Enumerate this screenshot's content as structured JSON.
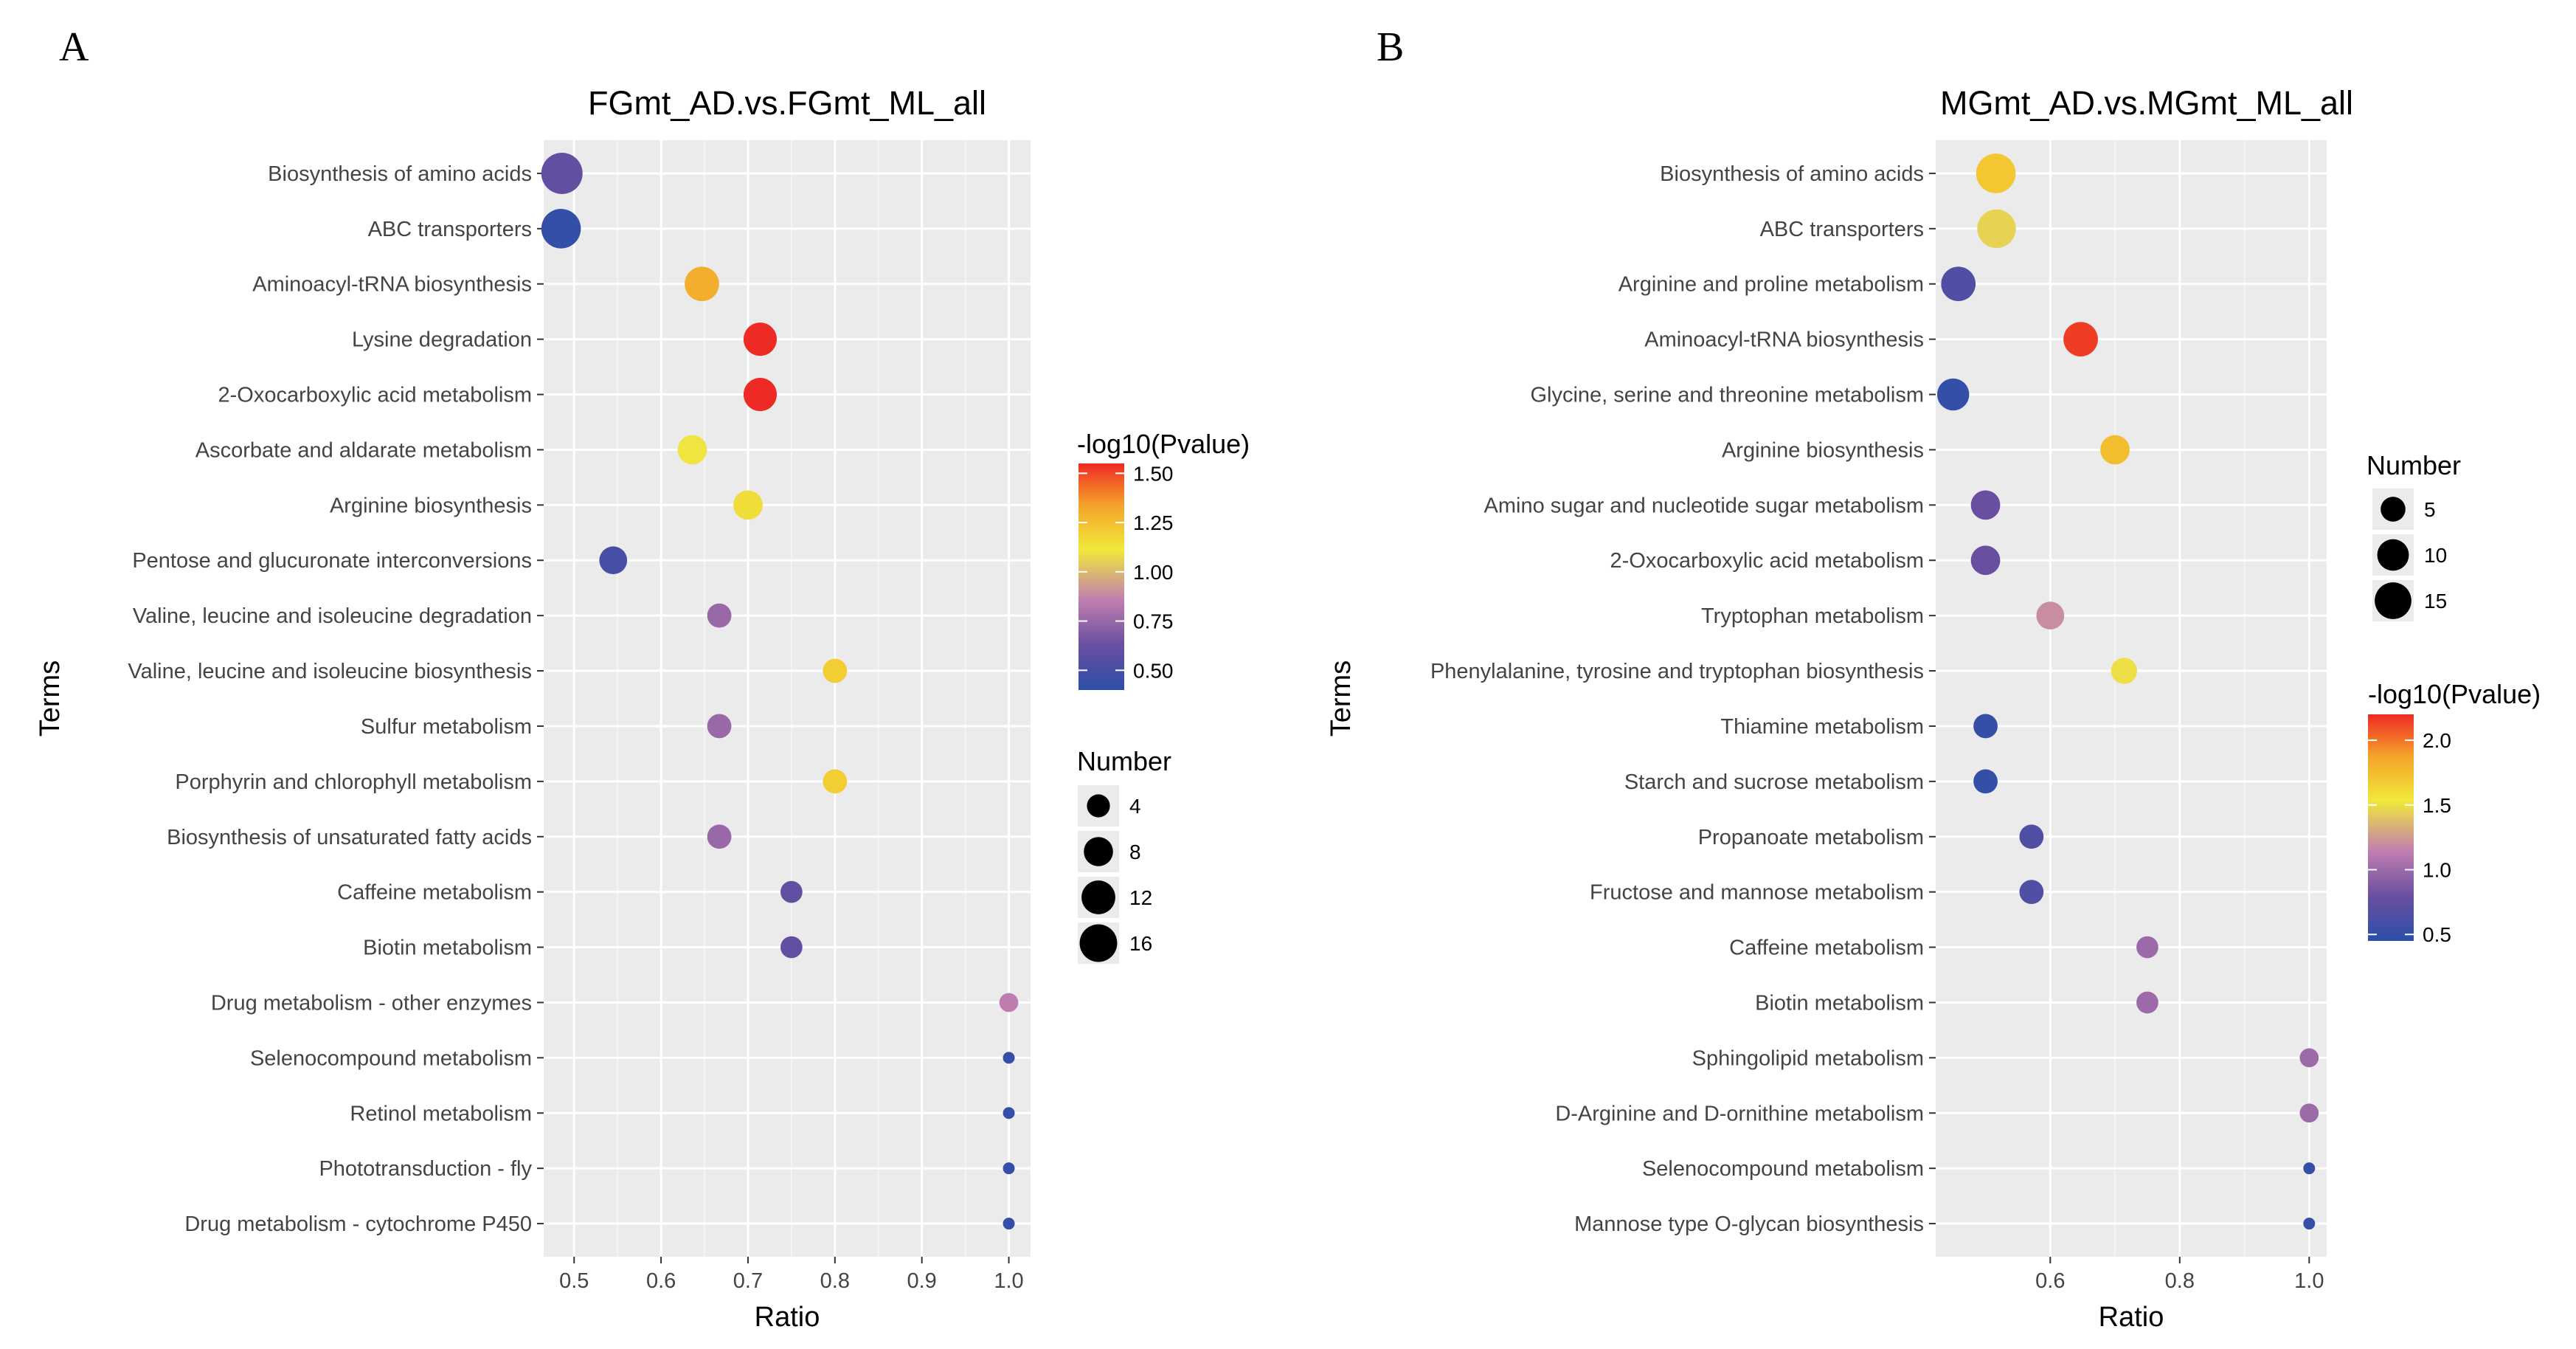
{
  "chart_data": [
    {
      "type": "scatter",
      "panel_label": "A",
      "title": "FGmt_AD.vs.FGmt_ML_all",
      "xlabel": "Ratio",
      "ylabel": "Terms",
      "xlim": [
        0.465,
        1.025
      ],
      "xticks": [
        0.5,
        0.6,
        0.7,
        0.8,
        0.9,
        1.0
      ],
      "xtick_labels": [
        "0.5",
        "0.6",
        "0.7",
        "0.8",
        "0.9",
        "1.0"
      ],
      "color_legend": {
        "title": "-log10(Pvalue)",
        "range": [
          0.4,
          1.55
        ],
        "ticks": [
          1.5,
          1.25,
          1.0,
          0.75,
          0.5
        ],
        "tick_labels": [
          "1.50",
          "1.25",
          "1.00",
          "0.75",
          "0.50"
        ]
      },
      "size_legend": {
        "title": "Number",
        "values": [
          4,
          8,
          12,
          16
        ],
        "labels": [
          "4",
          "8",
          "12",
          "16"
        ]
      },
      "points": [
        {
          "term": "Biosynthesis of amino acids",
          "ratio": 0.486,
          "number": 18,
          "neglog10p": 0.6
        },
        {
          "term": "ABC transporters",
          "ratio": 0.485,
          "number": 16,
          "neglog10p": 0.43
        },
        {
          "term": "Aminoacyl-tRNA biosynthesis",
          "ratio": 0.647,
          "number": 11,
          "neglog10p": 1.3
        },
        {
          "term": "Lysine degradation",
          "ratio": 0.714,
          "number": 10,
          "neglog10p": 1.55
        },
        {
          "term": "2-Oxocarboxylic acid metabolism",
          "ratio": 0.714,
          "number": 10,
          "neglog10p": 1.55
        },
        {
          "term": "Ascorbate and aldarate metabolism",
          "ratio": 0.636,
          "number": 7,
          "neglog10p": 1.1
        },
        {
          "term": "Arginine biosynthesis",
          "ratio": 0.7,
          "number": 7,
          "neglog10p": 1.15
        },
        {
          "term": "Pentose and glucuronate interconversions",
          "ratio": 0.545,
          "number": 6,
          "neglog10p": 0.5
        },
        {
          "term": "Valine, leucine and isoleucine degradation",
          "ratio": 0.667,
          "number": 4,
          "neglog10p": 0.75
        },
        {
          "term": "Valine, leucine and isoleucine biosynthesis",
          "ratio": 0.8,
          "number": 4,
          "neglog10p": 1.2
        },
        {
          "term": "Sulfur metabolism",
          "ratio": 0.667,
          "number": 4,
          "neglog10p": 0.75
        },
        {
          "term": "Porphyrin and chlorophyll metabolism",
          "ratio": 0.8,
          "number": 4,
          "neglog10p": 1.2
        },
        {
          "term": "Biosynthesis of unsaturated fatty acids",
          "ratio": 0.667,
          "number": 4,
          "neglog10p": 0.75
        },
        {
          "term": "Caffeine metabolism",
          "ratio": 0.75,
          "number": 3,
          "neglog10p": 0.6
        },
        {
          "term": "Biotin metabolism",
          "ratio": 0.75,
          "number": 3,
          "neglog10p": 0.6
        },
        {
          "term": "Drug metabolism - other enzymes",
          "ratio": 1.0,
          "number": 2,
          "neglog10p": 0.85
        },
        {
          "term": "Selenocompound metabolism",
          "ratio": 1.0,
          "number": 1,
          "neglog10p": 0.43
        },
        {
          "term": "Retinol metabolism",
          "ratio": 1.0,
          "number": 1,
          "neglog10p": 0.43
        },
        {
          "term": "Phototransduction - fly",
          "ratio": 1.0,
          "number": 1,
          "neglog10p": 0.43
        },
        {
          "term": "Drug metabolism - cytochrome P450",
          "ratio": 1.0,
          "number": 1,
          "neglog10p": 0.43
        }
      ]
    },
    {
      "type": "scatter",
      "panel_label": "B",
      "title": "MGmt_AD.vs.MGmt_ML_all",
      "xlabel": "Ratio",
      "ylabel": "Terms",
      "xlim": [
        0.423,
        1.027
      ],
      "xticks": [
        0.6,
        0.8,
        1.0
      ],
      "xtick_labels": [
        "0.6",
        "0.8",
        "1.0"
      ],
      "color_legend": {
        "title": "-log10(Pvalue)",
        "range": [
          0.45,
          2.2
        ],
        "ticks": [
          2.0,
          1.5,
          1.0,
          0.5
        ],
        "tick_labels": [
          "2.0",
          "1.5",
          "1.0",
          "0.5"
        ]
      },
      "size_legend": {
        "title": "Number",
        "values": [
          5,
          10,
          15
        ],
        "labels": [
          "5",
          "10",
          "15"
        ]
      },
      "points": [
        {
          "term": "Biosynthesis of amino acids",
          "ratio": 0.516,
          "number": 16,
          "neglog10p": 1.7
        },
        {
          "term": "ABC transporters",
          "ratio": 0.517,
          "number": 15,
          "neglog10p": 1.45
        },
        {
          "term": "Arginine and proline metabolism",
          "ratio": 0.458,
          "number": 11,
          "neglog10p": 0.65
        },
        {
          "term": "Aminoacyl-tRNA biosynthesis",
          "ratio": 0.647,
          "number": 11,
          "neglog10p": 2.15
        },
        {
          "term": "Glycine, serine and threonine metabolism",
          "ratio": 0.45,
          "number": 9,
          "neglog10p": 0.5
        },
        {
          "term": "Arginine biosynthesis",
          "ratio": 0.7,
          "number": 7,
          "neglog10p": 1.75
        },
        {
          "term": "Amino sugar and nucleotide sugar metabolism",
          "ratio": 0.5,
          "number": 7,
          "neglog10p": 0.8
        },
        {
          "term": "2-Oxocarboxylic acid metabolism",
          "ratio": 0.5,
          "number": 7,
          "neglog10p": 0.8
        },
        {
          "term": "Tryptophan metabolism",
          "ratio": 0.6,
          "number": 6,
          "neglog10p": 1.2
        },
        {
          "term": "Phenylalanine, tyrosine and tryptophan biosynthesis",
          "ratio": 0.714,
          "number": 5,
          "neglog10p": 1.5
        },
        {
          "term": "Thiamine metabolism",
          "ratio": 0.5,
          "number": 4,
          "neglog10p": 0.5
        },
        {
          "term": "Starch and sucrose metabolism",
          "ratio": 0.5,
          "number": 4,
          "neglog10p": 0.5
        },
        {
          "term": "Propanoate metabolism",
          "ratio": 0.571,
          "number": 4,
          "neglog10p": 0.65
        },
        {
          "term": "Fructose and mannose metabolism",
          "ratio": 0.571,
          "number": 4,
          "neglog10p": 0.65
        },
        {
          "term": "Caffeine metabolism",
          "ratio": 0.75,
          "number": 3,
          "neglog10p": 1.0
        },
        {
          "term": "Biotin metabolism",
          "ratio": 0.75,
          "number": 3,
          "neglog10p": 1.0
        },
        {
          "term": "Sphingolipid metabolism",
          "ratio": 1.0,
          "number": 2,
          "neglog10p": 1.0
        },
        {
          "term": "D-Arginine and D-ornithine metabolism",
          "ratio": 1.0,
          "number": 2,
          "neglog10p": 1.0
        },
        {
          "term": "Selenocompound metabolism",
          "ratio": 1.0,
          "number": 1,
          "neglog10p": 0.5
        },
        {
          "term": "Mannose type O-glycan biosynthesis",
          "ratio": 1.0,
          "number": 1,
          "neglog10p": 0.5
        }
      ]
    }
  ],
  "colors": {
    "panel_background": "#ebebeb",
    "grid": "#ffffff",
    "gradient": [
      "#2b4fa8",
      "#6a4fa0",
      "#c27fb0",
      "#f1e93a",
      "#f4a12a",
      "#ee2a24"
    ]
  }
}
